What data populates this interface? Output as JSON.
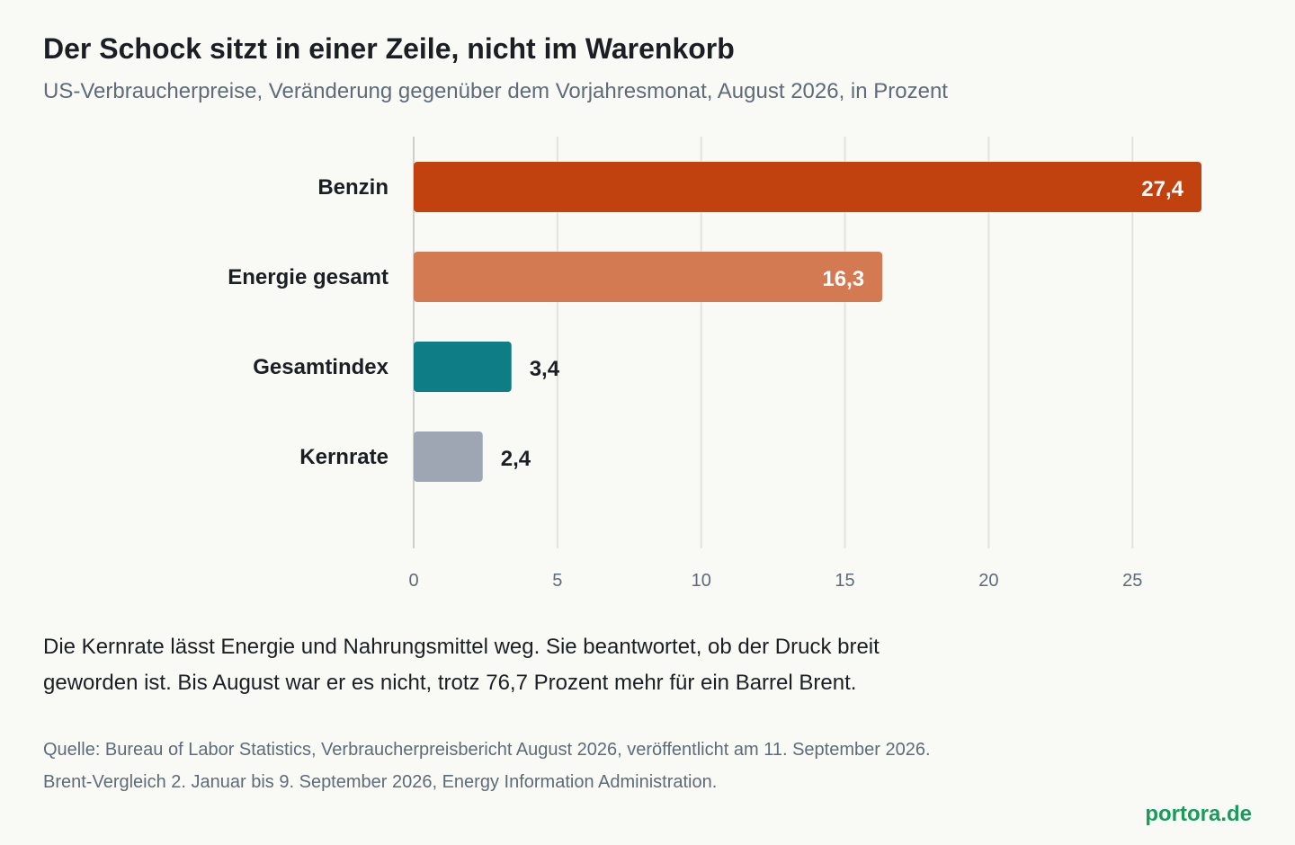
{
  "header": {
    "title": "Der Schock sitzt in einer Zeile, nicht im Warenkorb",
    "subtitle": "US-Verbraucherpreise, Veränderung gegenüber dem Vorjahresmonat, August 2026, in Prozent"
  },
  "chart_data": {
    "type": "bar",
    "orientation": "horizontal",
    "categories": [
      "Benzin",
      "Energie gesamt",
      "Gesamtindex",
      "Kernrate"
    ],
    "values": [
      27.4,
      16.3,
      3.4,
      2.4
    ],
    "value_labels": [
      "27,4",
      "16,3",
      "3,4",
      "2,4"
    ],
    "colors": [
      "#c1410f",
      "#d47a52",
      "#0e7d86",
      "#9ea6b4"
    ],
    "xlim": [
      0,
      27.4
    ],
    "xticks": [
      0,
      5,
      10,
      15,
      20,
      25
    ],
    "xtick_labels": [
      "0",
      "5",
      "10",
      "15",
      "20",
      "25"
    ],
    "grid": true,
    "legend": "none"
  },
  "note": {
    "line1": "Die Kernrate lässt Energie und Nahrungsmittel weg. Sie beantwortet, ob der Druck breit",
    "line2": "geworden ist. Bis August war er es nicht, trotz 76,7 Prozent mehr für ein Barrel Brent."
  },
  "source": {
    "line1": "Quelle: Bureau of Labor Statistics, Verbraucherpreisbericht August 2026, veröffentlicht am 11. September 2026.",
    "line2": "Brent-Vergleich 2. Januar bis 9. September 2026, Energy Information Administration."
  },
  "brand": "portora.de",
  "colors": {
    "background": "#f9f9f6",
    "grid": "#e3e3dd",
    "axis": "#cfd0ca",
    "text": "#1b1f24",
    "muted": "#5f6b78",
    "brand": "#1a9b5c",
    "label_inside": "#ffffff"
  }
}
